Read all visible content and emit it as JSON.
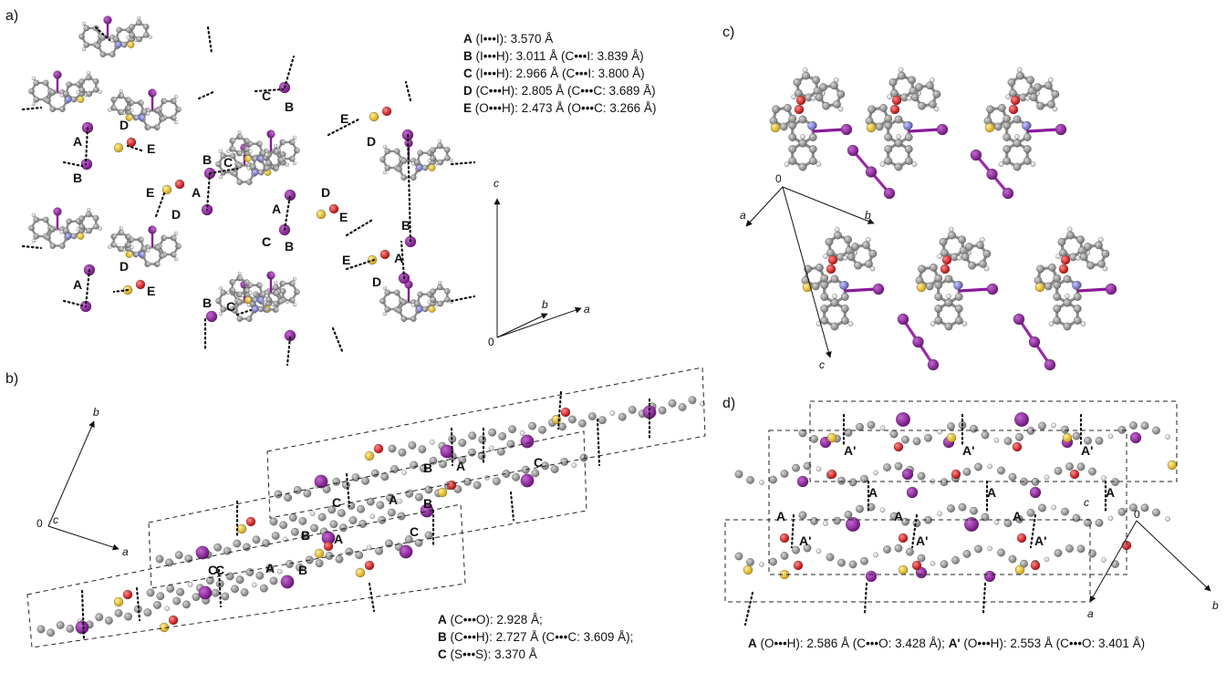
{
  "panels": {
    "a": {
      "label": "a)",
      "legend": [
        {
          "key": "A",
          "text": " (I•••I): 3.570 Å"
        },
        {
          "key": "B",
          "text": " (I•••H): 3.011 Å (C•••I: 3.839 Å)"
        },
        {
          "key": "C",
          "text": " (I•••H): 2.966 Å (C•••I: 3.800 Å)"
        },
        {
          "key": "D",
          "text": " (C•••H): 2.805 Å (C•••C: 3.689 Å)"
        },
        {
          "key": "E",
          "text": " (O•••H): 2.473 Å (O•••C: 3.266 Å)"
        }
      ],
      "axes": {
        "c": "c",
        "b": "b",
        "a": "a",
        "origin": "0"
      },
      "contacts": [
        "A",
        "B",
        "C",
        "D",
        "E",
        "D",
        "E",
        "B",
        "C",
        "A",
        "B",
        "C",
        "D",
        "E",
        "A",
        "B",
        "C",
        "D",
        "E",
        "A",
        "B",
        "C",
        "B",
        "A",
        "D",
        "E",
        "D",
        "E"
      ]
    },
    "b": {
      "label": "b)",
      "legend": [
        {
          "key": "A",
          "text": " (C•••O): 2.928 Å;"
        },
        {
          "key": "B",
          "text": " (C•••H): 2.727 Å (C•••C: 3.609 Å);"
        },
        {
          "key": "C",
          "text": " (S•••S): 3.370 Å"
        }
      ],
      "axes": {
        "b": "b",
        "a": "a",
        "c": "c",
        "origin": "0"
      },
      "contacts": [
        "B",
        "A",
        "C",
        "C",
        "A",
        "B",
        "C",
        "B",
        "A",
        "A",
        "B",
        "C",
        "C"
      ]
    },
    "c": {
      "label": "c)",
      "axes": {
        "origin": "0",
        "a": "a",
        "b": "b",
        "c": "c"
      }
    },
    "d": {
      "label": "d)",
      "legend": [
        {
          "key": "A",
          "text": " (O•••H): 2.586 Å (C•••O: 3.428 Å); "
        },
        {
          "key": "A'",
          "text": " (O•••H): 2.553 Å (C•••O: 3.401 Å)"
        }
      ],
      "axes": {
        "c": "c",
        "origin": "0",
        "a": "a",
        "b": "b"
      },
      "contacts": [
        "A'",
        "A'",
        "A'",
        "A",
        "A",
        "A",
        "A",
        "A",
        "A",
        "A'",
        "A'",
        "A'"
      ]
    }
  },
  "colors": {
    "iodine": "#8a1a9b",
    "sulfur": "#e8c020",
    "oxygen": "#e01010",
    "nitrogen": "#7a7ad8",
    "carbon": "#8c8c8c",
    "hydrogen": "#f4f4f4"
  }
}
